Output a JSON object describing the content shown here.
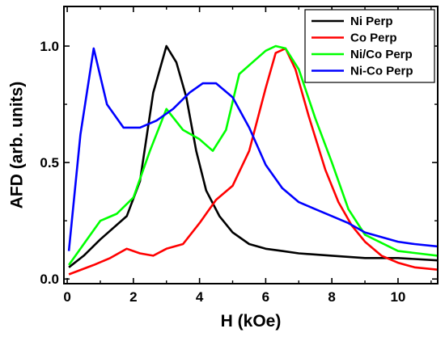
{
  "chart_data": {
    "type": "line",
    "title": "",
    "xlabel": "H (kOe)",
    "ylabel": "AFD (arb. units)",
    "xlim": [
      -0.1,
      11.2
    ],
    "ylim": [
      -0.02,
      1.17
    ],
    "xticks": [
      0,
      2,
      4,
      6,
      8,
      10
    ],
    "xtick_labels": [
      "0",
      "2",
      "4",
      "6",
      "8",
      "10"
    ],
    "yticks": [
      0.0,
      0.5,
      1.0
    ],
    "ytick_labels": [
      "0.0",
      "0.5",
      "1.0"
    ],
    "grid": false,
    "legend_position": "top-right",
    "series": [
      {
        "name": "Ni Perp",
        "color": "#000000",
        "points": [
          [
            0.05,
            0.05
          ],
          [
            0.5,
            0.1
          ],
          [
            1.0,
            0.17
          ],
          [
            1.8,
            0.27
          ],
          [
            2.2,
            0.42
          ],
          [
            2.6,
            0.8
          ],
          [
            3.0,
            1.0
          ],
          [
            3.3,
            0.93
          ],
          [
            3.6,
            0.78
          ],
          [
            3.9,
            0.55
          ],
          [
            4.2,
            0.38
          ],
          [
            4.6,
            0.27
          ],
          [
            5.0,
            0.2
          ],
          [
            5.5,
            0.15
          ],
          [
            6.0,
            0.13
          ],
          [
            6.5,
            0.12
          ],
          [
            7.0,
            0.11
          ],
          [
            8.0,
            0.1
          ],
          [
            9.0,
            0.09
          ],
          [
            10.0,
            0.09
          ],
          [
            11.2,
            0.08
          ]
        ]
      },
      {
        "name": "Co Perp",
        "color": "#ff0000",
        "points": [
          [
            0.05,
            0.02
          ],
          [
            0.8,
            0.06
          ],
          [
            1.3,
            0.09
          ],
          [
            1.8,
            0.13
          ],
          [
            2.2,
            0.11
          ],
          [
            2.6,
            0.1
          ],
          [
            3.0,
            0.13
          ],
          [
            3.5,
            0.15
          ],
          [
            4.0,
            0.24
          ],
          [
            4.5,
            0.34
          ],
          [
            5.0,
            0.4
          ],
          [
            5.5,
            0.55
          ],
          [
            6.0,
            0.82
          ],
          [
            6.3,
            0.97
          ],
          [
            6.6,
            0.99
          ],
          [
            6.9,
            0.9
          ],
          [
            7.3,
            0.7
          ],
          [
            7.8,
            0.47
          ],
          [
            8.2,
            0.33
          ],
          [
            8.6,
            0.23
          ],
          [
            9.0,
            0.16
          ],
          [
            9.5,
            0.1
          ],
          [
            10.0,
            0.07
          ],
          [
            10.5,
            0.05
          ],
          [
            11.2,
            0.04
          ]
        ]
      },
      {
        "name": "Ni/Co Perp",
        "color": "#00ff00",
        "points": [
          [
            0.05,
            0.06
          ],
          [
            0.5,
            0.15
          ],
          [
            1.0,
            0.25
          ],
          [
            1.5,
            0.28
          ],
          [
            2.0,
            0.35
          ],
          [
            2.5,
            0.55
          ],
          [
            3.0,
            0.73
          ],
          [
            3.5,
            0.64
          ],
          [
            4.0,
            0.6
          ],
          [
            4.4,
            0.55
          ],
          [
            4.8,
            0.64
          ],
          [
            5.2,
            0.88
          ],
          [
            5.6,
            0.93
          ],
          [
            6.0,
            0.98
          ],
          [
            6.3,
            1.0
          ],
          [
            6.6,
            0.99
          ],
          [
            7.0,
            0.9
          ],
          [
            7.5,
            0.69
          ],
          [
            8.0,
            0.5
          ],
          [
            8.5,
            0.3
          ],
          [
            9.0,
            0.19
          ],
          [
            10.0,
            0.12
          ],
          [
            11.2,
            0.1
          ]
        ]
      },
      {
        "name": "Ni-Co Perp",
        "color": "#0000ff",
        "points": [
          [
            0.05,
            0.12
          ],
          [
            0.4,
            0.62
          ],
          [
            0.8,
            0.99
          ],
          [
            1.2,
            0.75
          ],
          [
            1.7,
            0.65
          ],
          [
            2.2,
            0.65
          ],
          [
            2.7,
            0.68
          ],
          [
            3.2,
            0.73
          ],
          [
            3.7,
            0.8
          ],
          [
            4.1,
            0.84
          ],
          [
            4.5,
            0.84
          ],
          [
            5.0,
            0.78
          ],
          [
            5.5,
            0.65
          ],
          [
            6.0,
            0.49
          ],
          [
            6.5,
            0.39
          ],
          [
            7.0,
            0.33
          ],
          [
            7.5,
            0.3
          ],
          [
            8.0,
            0.27
          ],
          [
            8.5,
            0.24
          ],
          [
            9.0,
            0.2
          ],
          [
            9.5,
            0.18
          ],
          [
            10.0,
            0.16
          ],
          [
            10.5,
            0.15
          ],
          [
            11.2,
            0.14
          ]
        ]
      }
    ]
  }
}
